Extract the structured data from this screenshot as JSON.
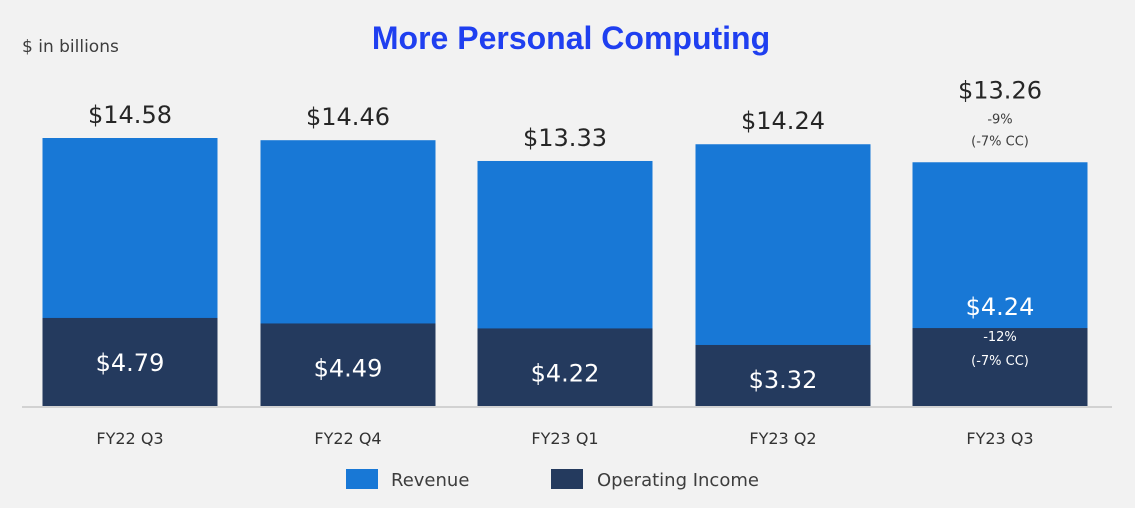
{
  "chart_data": {
    "type": "bar",
    "stacked": false,
    "overlay": true,
    "title": "More Personal Computing",
    "units_label": "$ in billions",
    "categories": [
      "FY22 Q3",
      "FY22 Q4",
      "FY23 Q1",
      "FY23 Q2",
      "FY23 Q3"
    ],
    "series": [
      {
        "name": "Revenue",
        "color": "#1878d6",
        "values": [
          14.58,
          14.46,
          13.33,
          14.24,
          13.26
        ],
        "labels": [
          "$14.58",
          "$14.46",
          "$13.33",
          "$14.24",
          "$13.26"
        ]
      },
      {
        "name": "Operating Income",
        "color": "#243a5e",
        "values": [
          4.79,
          4.49,
          4.22,
          3.32,
          4.24
        ],
        "labels": [
          "$4.79",
          "$4.49",
          "$4.22",
          "$3.32",
          "$4.24"
        ]
      }
    ],
    "annotations": {
      "revenue_last": [
        "-9%",
        "(-7% CC)"
      ],
      "operating_income_last": [
        "-12%",
        "(-7% CC)"
      ]
    },
    "ylim": [
      0,
      17.3
    ],
    "legend": "bottom-center",
    "grid": false
  }
}
